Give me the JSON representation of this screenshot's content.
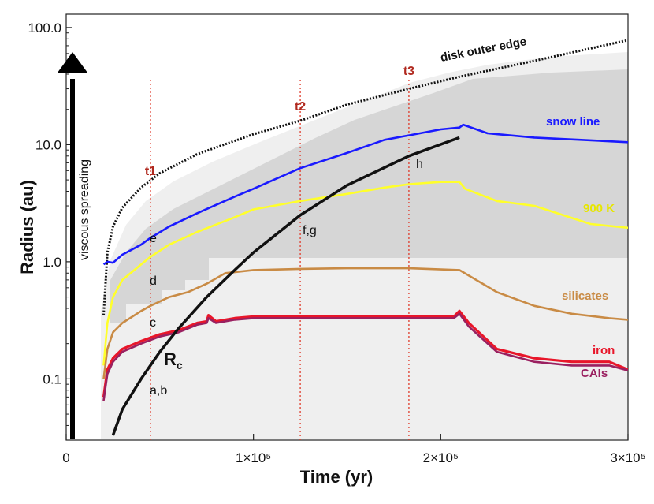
{
  "chart_data": {
    "type": "line",
    "title": "",
    "xlabel": "Time (yr)",
    "ylabel": "Radius (au)",
    "xlim": [
      0,
      300000
    ],
    "ylim": [
      0.03,
      130
    ],
    "yscale": "log",
    "x_ticks": [
      {
        "value": 0,
        "label": "0"
      },
      {
        "value": 100000,
        "label": "1×10⁵"
      },
      {
        "value": 200000,
        "label": "2×10⁵"
      },
      {
        "value": 300000,
        "label": "3×10⁵"
      }
    ],
    "y_ticks": [
      {
        "value": 0.1,
        "label": "0.1"
      },
      {
        "value": 1,
        "label": "1.0"
      },
      {
        "value": 10,
        "label": "10.0"
      },
      {
        "value": 100,
        "label": "100.0"
      }
    ],
    "series": [
      {
        "name": "disk outer edge",
        "color": "#111111",
        "style": "dotted",
        "x": [
          20000,
          22000,
          25000,
          30000,
          40000,
          50000,
          70000,
          100000,
          125000,
          150000,
          183000,
          210000,
          250000,
          300000
        ],
        "y": [
          0.35,
          1.2,
          2.0,
          2.9,
          4.3,
          5.7,
          8.3,
          12.3,
          16.0,
          22.0,
          30.0,
          38.0,
          52.0,
          78.0
        ]
      },
      {
        "name": "snow line",
        "color": "#1a1aff",
        "style": "solid",
        "x": [
          20000,
          22000,
          25000,
          30000,
          40000,
          45000,
          55000,
          70000,
          90000,
          100000,
          125000,
          150000,
          170000,
          183000,
          200000,
          210000,
          212000,
          225000,
          250000,
          275000,
          300000
        ],
        "y": [
          0.95,
          1.0,
          0.98,
          1.15,
          1.4,
          1.6,
          2.0,
          2.6,
          3.6,
          4.2,
          6.3,
          8.5,
          11.0,
          12.0,
          13.5,
          14.0,
          14.8,
          12.5,
          11.5,
          11.0,
          10.5
        ]
      },
      {
        "name": "900 K",
        "color": "#ffff2a",
        "style": "solid",
        "x": [
          20000,
          22000,
          25000,
          30000,
          40000,
          45000,
          55000,
          70000,
          90000,
          100000,
          125000,
          150000,
          170000,
          183000,
          200000,
          210000,
          213000,
          230000,
          250000,
          280000,
          300000
        ],
        "y": [
          0.13,
          0.3,
          0.5,
          0.7,
          0.95,
          1.1,
          1.4,
          1.8,
          2.4,
          2.8,
          3.3,
          3.8,
          4.3,
          4.6,
          4.8,
          4.8,
          4.2,
          3.3,
          3.0,
          2.1,
          1.95
        ]
      },
      {
        "name": "silicates",
        "color": "#c98b45",
        "style": "solid",
        "x": [
          20000,
          22000,
          25000,
          30000,
          40000,
          45000,
          55000,
          65000,
          75000,
          85000,
          100000,
          125000,
          150000,
          183000,
          210000,
          230000,
          250000,
          270000,
          290000,
          300000
        ],
        "y": [
          0.1,
          0.18,
          0.25,
          0.3,
          0.38,
          0.42,
          0.5,
          0.55,
          0.65,
          0.8,
          0.85,
          0.87,
          0.88,
          0.88,
          0.85,
          0.55,
          0.42,
          0.36,
          0.33,
          0.32
        ]
      },
      {
        "name": "iron",
        "color": "#e8162a",
        "style": "solid",
        "x": [
          20000,
          22000,
          25000,
          30000,
          40000,
          50000,
          60000,
          70000,
          75000,
          76000,
          80000,
          90000,
          100000,
          125000,
          150000,
          183000,
          207000,
          210000,
          215000,
          230000,
          250000,
          270000,
          290000,
          300000
        ],
        "y": [
          0.07,
          0.12,
          0.15,
          0.18,
          0.21,
          0.24,
          0.26,
          0.3,
          0.31,
          0.35,
          0.31,
          0.33,
          0.34,
          0.34,
          0.34,
          0.34,
          0.34,
          0.38,
          0.3,
          0.18,
          0.15,
          0.14,
          0.14,
          0.12
        ]
      },
      {
        "name": "CAIs",
        "color": "#9a2060",
        "style": "solid",
        "x": [
          20000,
          22000,
          25000,
          30000,
          40000,
          50000,
          60000,
          70000,
          75000,
          76000,
          80000,
          90000,
          100000,
          125000,
          150000,
          183000,
          207000,
          210000,
          215000,
          230000,
          250000,
          270000,
          290000,
          300000
        ],
        "y": [
          0.065,
          0.11,
          0.14,
          0.17,
          0.2,
          0.23,
          0.25,
          0.29,
          0.3,
          0.33,
          0.3,
          0.32,
          0.33,
          0.33,
          0.33,
          0.33,
          0.33,
          0.36,
          0.28,
          0.17,
          0.14,
          0.13,
          0.13,
          0.118
        ]
      },
      {
        "name": "Rc",
        "color": "#111111",
        "style": "solid",
        "x": [
          25000,
          30000,
          40000,
          50000,
          60000,
          75000,
          90000,
          100000,
          125000,
          150000,
          183000,
          210000
        ],
        "y": [
          0.033,
          0.055,
          0.1,
          0.17,
          0.27,
          0.5,
          0.85,
          1.2,
          2.5,
          4.5,
          8.0,
          11.5
        ]
      }
    ],
    "series_labels": [
      {
        "text": "disk outer edge",
        "color": "#111111"
      },
      {
        "text": "snow line",
        "color": "#1a1aff"
      },
      {
        "text": "900 K",
        "color": "#ffff2a"
      },
      {
        "text": "silicates",
        "color": "#c98b45"
      },
      {
        "text": "iron",
        "color": "#e8162a"
      },
      {
        "text": "CAIs",
        "color": "#9a2060"
      }
    ],
    "rc_label": {
      "main": "R",
      "sub": "c"
    },
    "time_markers": [
      {
        "name": "t1",
        "x": 45000
      },
      {
        "name": "t2",
        "x": 125000
      },
      {
        "name": "t3",
        "x": 183000
      }
    ],
    "point_labels": [
      "a,b",
      "c",
      "d",
      "e",
      "f,g",
      "h"
    ],
    "arrow_label": "viscous spreading"
  }
}
